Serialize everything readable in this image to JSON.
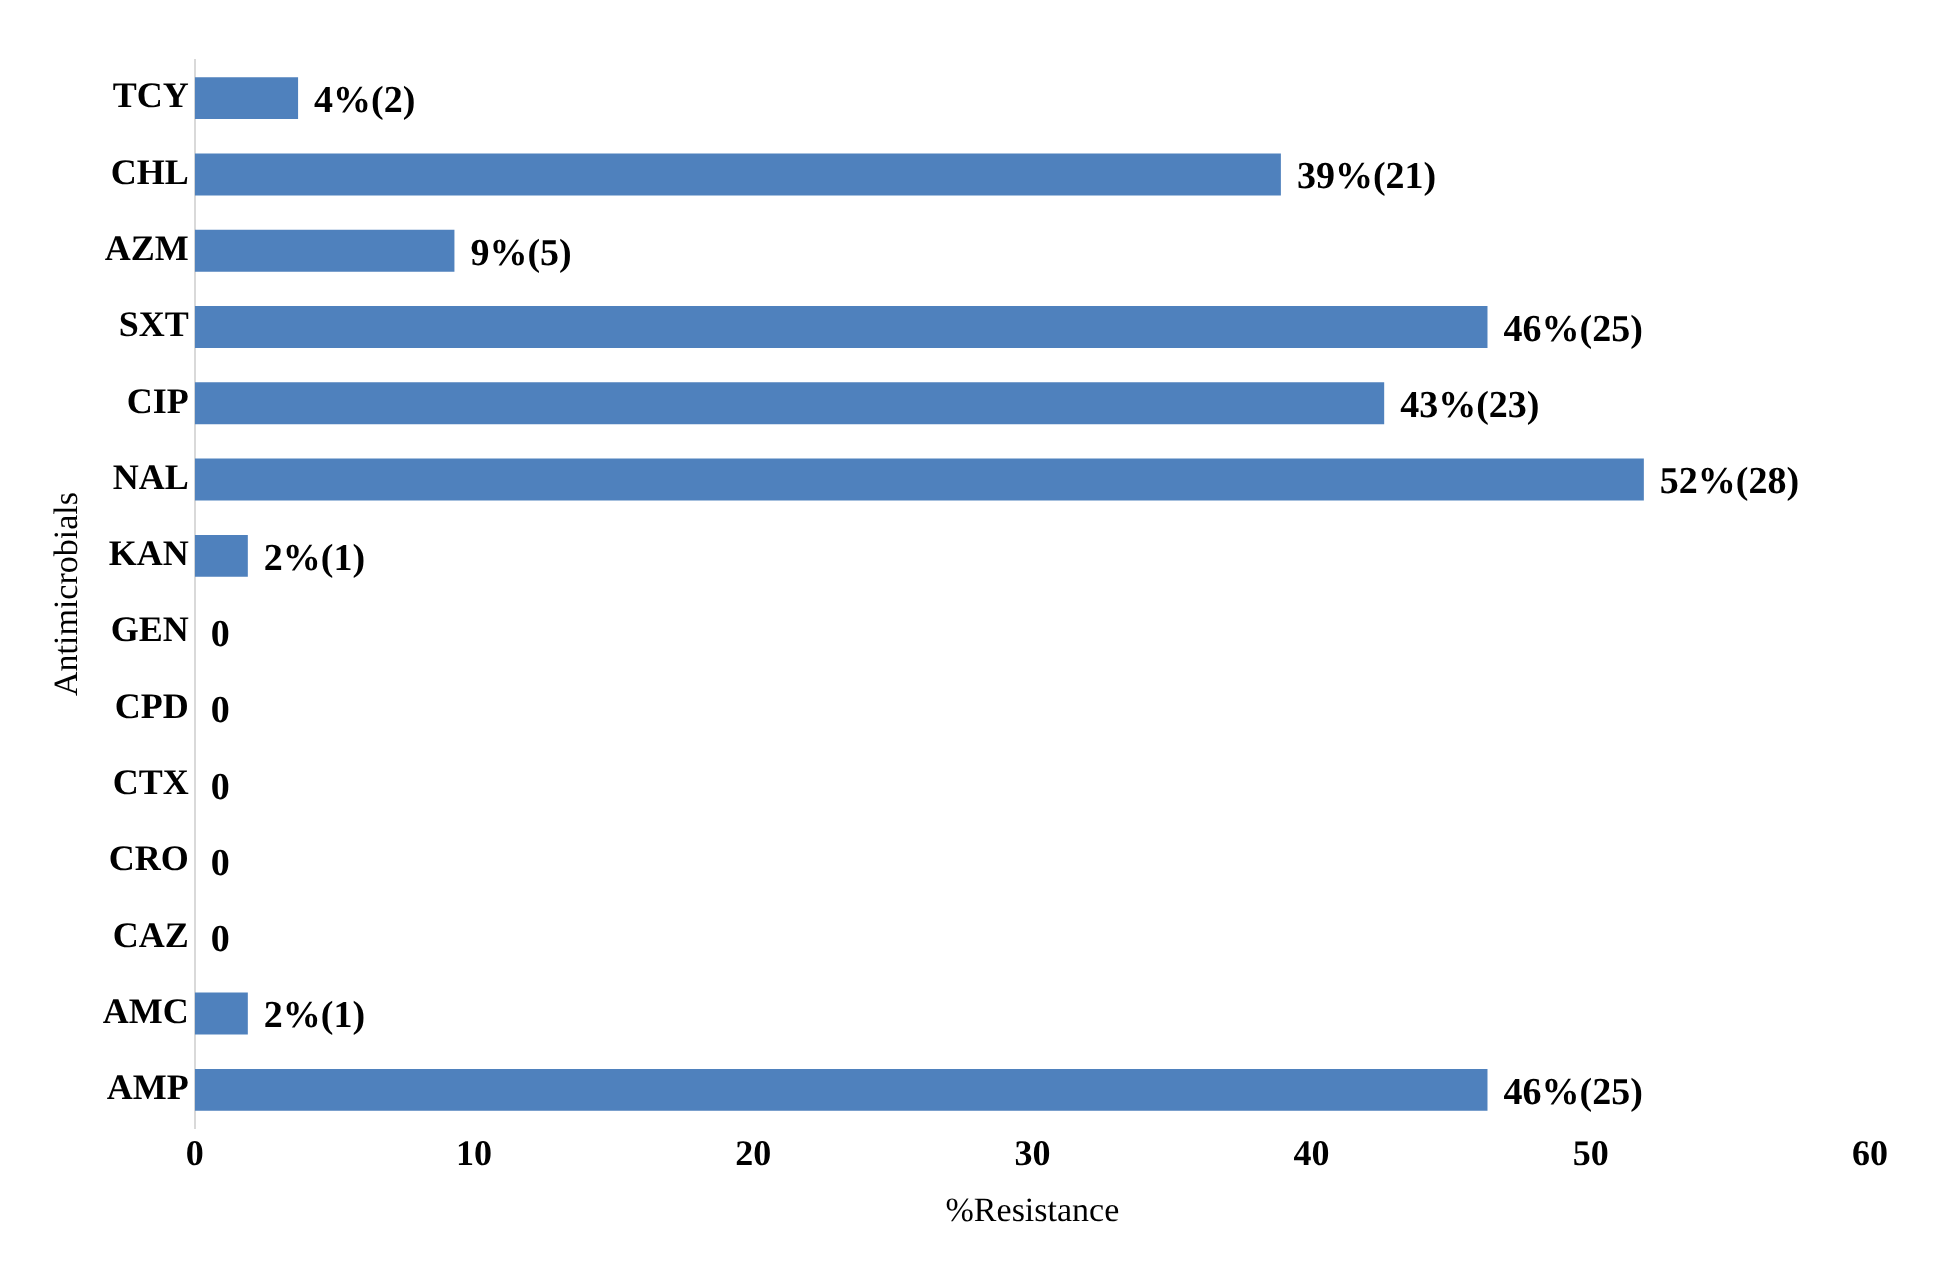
{
  "chart_data": {
    "type": "bar",
    "orientation": "horizontal",
    "xlabel": "%Resistance",
    "ylabel": "Antimicrobials",
    "categories": [
      "TCY",
      "CHL",
      "AZM",
      "SXT",
      "CIP",
      "NAL",
      "KAN",
      "GEN",
      "CPD",
      "CTX",
      "CRO",
      "CAZ",
      "AMC",
      "AMP"
    ],
    "values": [
      3.7,
      38.9,
      9.3,
      46.3,
      42.6,
      51.9,
      1.9,
      0,
      0,
      0,
      0,
      0,
      1.9,
      46.3
    ],
    "value_labels": [
      "4%(2)",
      "39%(21)",
      "9%(5)",
      "46%(25)",
      "43%(23)",
      "52%(28)",
      "2%(1)",
      "0",
      "0",
      "0",
      "0",
      "0",
      "2%(1)",
      "46%(25)"
    ],
    "color": "#4f81bd",
    "xlim": [
      0,
      60
    ],
    "xticks": [
      0,
      10,
      20,
      30,
      40,
      50,
      60
    ],
    "grid": false,
    "legend": false
  }
}
